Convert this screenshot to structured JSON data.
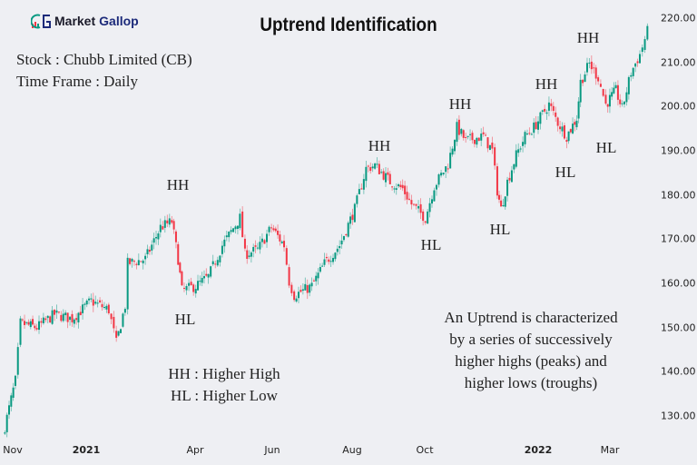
{
  "logo": {
    "text_1": "Market",
    "text_2": "Gallop"
  },
  "header": {
    "title": "Uptrend Identification"
  },
  "info": {
    "stock": "Stock : Chubb Limited (CB)",
    "timeframe": "Time Frame : Daily"
  },
  "legend_note": {
    "line_1": "HH : Higher High",
    "line_2": "HL : Higher Low"
  },
  "description": [
    "An Uptrend is characterized",
    "by a series of successively",
    "higher highs (peaks) and",
    "higher lows (troughs)"
  ],
  "annotations": [
    "HH",
    "HL",
    "HH",
    "HL",
    "HH",
    "HL",
    "HH",
    "HL",
    "HH",
    "HL"
  ],
  "colors": {
    "up": "#089981",
    "down": "#f23645",
    "background": "#eeeff3"
  },
  "chart_data": {
    "type": "candlestick",
    "title": "Uptrend Identification",
    "ylim": [
      125,
      222
    ],
    "y_ticks": [
      "220.00",
      "210.00",
      "200.00",
      "190.00",
      "180.00",
      "170.00",
      "160.00",
      "150.00",
      "140.00",
      "130.00"
    ],
    "x_ticks": [
      {
        "label": "Nov",
        "year": false
      },
      {
        "label": "2021",
        "year": true
      },
      {
        "label": "Apr",
        "year": false
      },
      {
        "label": "Jun",
        "year": false
      },
      {
        "label": "Aug",
        "year": false
      },
      {
        "label": "Oct",
        "year": false
      },
      {
        "label": "2022",
        "year": true
      },
      {
        "label": "Mar",
        "year": false
      }
    ],
    "approx_closes": [
      [
        "2020-10-27",
        125.5
      ],
      [
        "2020-11-06",
        138
      ],
      [
        "2020-11-10",
        151
      ],
      [
        "2020-11-23",
        150
      ],
      [
        "2020-12-07",
        153
      ],
      [
        "2020-12-21",
        152
      ],
      [
        "2021-01-05",
        156
      ],
      [
        "2021-01-19",
        154
      ],
      [
        "2021-01-25",
        146.5
      ],
      [
        "2021-02-01",
        155
      ],
      [
        "2021-02-03",
        164.5
      ],
      [
        "2021-02-17",
        165.5
      ],
      [
        "2021-03-01",
        172.7
      ],
      [
        "2021-03-10",
        174
      ],
      [
        "2021-03-15",
        165.5
      ],
      [
        "2021-03-18",
        158.4
      ],
      [
        "2021-03-29",
        159.4
      ],
      [
        "2021-04-08",
        161.5
      ],
      [
        "2021-04-19",
        168.6
      ],
      [
        "2021-05-03",
        174.8
      ],
      [
        "2021-05-07",
        166.6
      ],
      [
        "2021-05-17",
        167.6
      ],
      [
        "2021-05-28",
        172.7
      ],
      [
        "2021-06-07",
        168.6
      ],
      [
        "2021-06-11",
        160.4
      ],
      [
        "2021-06-15",
        157.3
      ],
      [
        "2021-06-29",
        159.4
      ],
      [
        "2021-07-09",
        164.5
      ],
      [
        "2021-07-21",
        168.6
      ],
      [
        "2021-08-02",
        176.8
      ],
      [
        "2021-08-11",
        186
      ],
      [
        "2021-08-18",
        186.7
      ],
      [
        "2021-08-30",
        183
      ],
      [
        "2021-09-09",
        181.4
      ],
      [
        "2021-09-16",
        177.9
      ],
      [
        "2021-09-27",
        174.8
      ],
      [
        "2021-10-04",
        182
      ],
      [
        "2021-10-15",
        187
      ],
      [
        "2021-10-22",
        195.3
      ],
      [
        "2021-10-29",
        192.3
      ],
      [
        "2021-11-12",
        193.3
      ],
      [
        "2021-11-19",
        190
      ],
      [
        "2021-11-23",
        181
      ],
      [
        "2021-11-26",
        176.8
      ],
      [
        "2021-12-01",
        183
      ],
      [
        "2021-12-08",
        189
      ],
      [
        "2021-12-15",
        193.3
      ],
      [
        "2021-12-22",
        195.3
      ],
      [
        "2022-01-03",
        200.5
      ],
      [
        "2022-01-10",
        196.4
      ],
      [
        "2022-01-17",
        193.3
      ],
      [
        "2022-01-25",
        197.4
      ],
      [
        "2022-01-28",
        205.6
      ],
      [
        "2022-02-04",
        209.7
      ],
      [
        "2022-02-11",
        206.6
      ],
      [
        "2022-02-17",
        200.5
      ],
      [
        "2022-02-25",
        203.6
      ],
      [
        "2022-03-02",
        199.5
      ],
      [
        "2022-03-09",
        207.7
      ],
      [
        "2022-03-16",
        211.8
      ],
      [
        "2022-03-22",
        217
      ]
    ]
  }
}
